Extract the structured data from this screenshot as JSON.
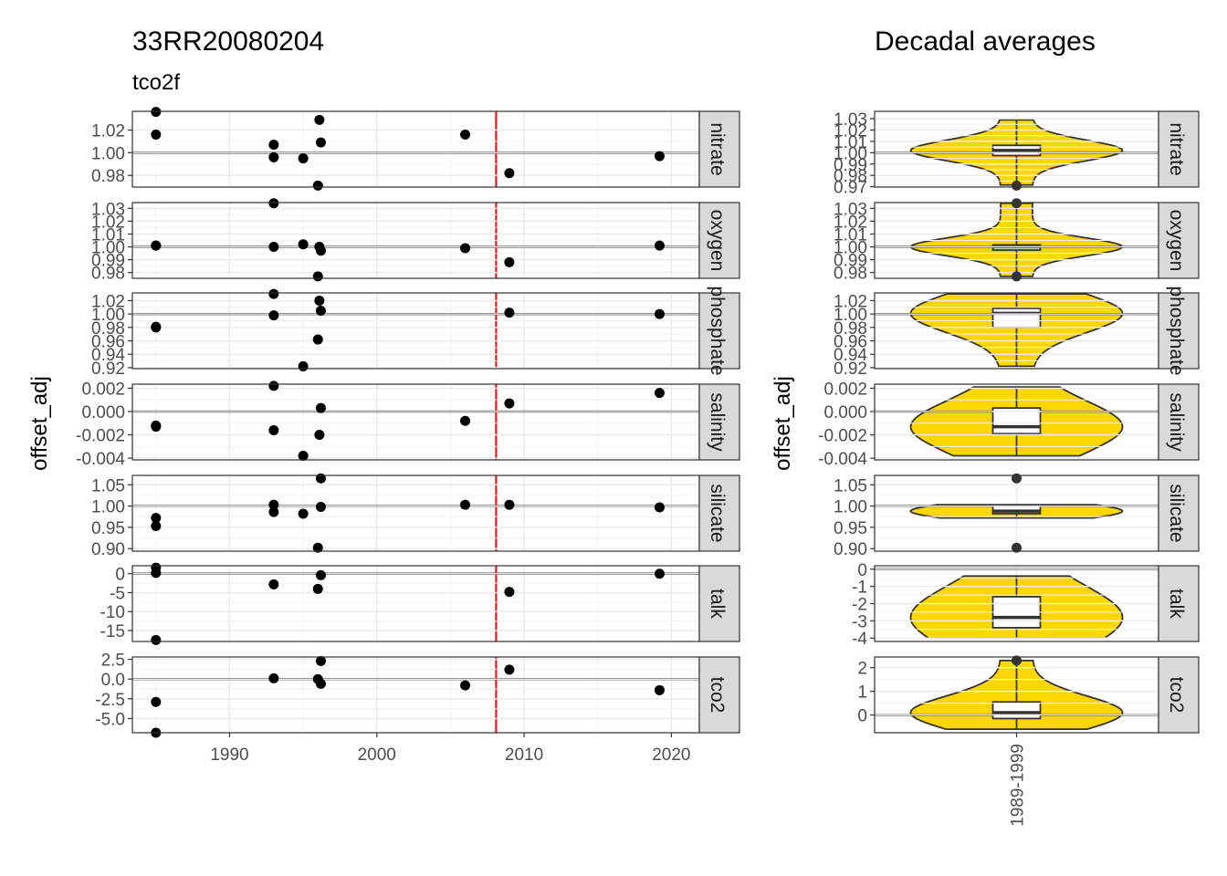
{
  "left": {
    "title": "33RR20080204",
    "subtitle": "tco2f",
    "ylabel": "offset_adj",
    "x_ticks": [
      "1990",
      "2000",
      "2010",
      "2020"
    ]
  },
  "right": {
    "title": "Decadal averages",
    "ylabel": "offset_adj",
    "category": "1989-1999"
  },
  "colors": {
    "violin_fill": "#FFD700",
    "reference_line": "#000000",
    "cruise_year_line": "#E41A1C",
    "points": "#000000",
    "strip_bg": "#D9D9D9"
  },
  "chart_data": [
    {
      "type": "scatter",
      "title": "33RR20080204",
      "subtitle": "tco2f",
      "xlabel": "",
      "ylabel": "offset_adj",
      "xlim": [
        1983.4,
        2021.9
      ],
      "x_ticks": [
        1990,
        2000,
        2010,
        2020
      ],
      "vline_x": 2008.1,
      "grid": true,
      "facets": [
        {
          "name": "nitrate",
          "ylim": [
            0.9697,
            1.0365
          ],
          "hline": 1.0,
          "y_ticks": [
            "1.02",
            "1.00",
            "0.98"
          ],
          "y_tick_values": [
            1.02,
            1.0,
            0.98
          ],
          "points": [
            [
              1985,
              1.036
            ],
            [
              1985,
              1.016
            ],
            [
              1993,
              1.007
            ],
            [
              1993,
              0.996
            ],
            [
              1995,
              0.995
            ],
            [
              1996.1,
              1.029
            ],
            [
              1996.2,
              1.009
            ],
            [
              1996,
              0.971
            ],
            [
              2006,
              1.016
            ],
            [
              2009,
              0.982
            ],
            [
              2019.2,
              0.997
            ]
          ]
        },
        {
          "name": "oxygen",
          "ylim": [
            0.9755,
            1.0345
          ],
          "hline": 1.0,
          "y_ticks": [
            "1.03",
            "1.02",
            "1.01",
            "1.00",
            "0.99",
            "0.98"
          ],
          "y_tick_values": [
            1.03,
            1.02,
            1.01,
            1.0,
            0.99,
            0.98
          ],
          "points": [
            [
              1985,
              1.001
            ],
            [
              1985,
              1.001
            ],
            [
              1993,
              1.034
            ],
            [
              1993,
              1.0
            ],
            [
              1995,
              1.002
            ],
            [
              1996.1,
              1.0
            ],
            [
              1996.2,
              0.997
            ],
            [
              1996,
              0.977
            ],
            [
              2006,
              0.999
            ],
            [
              2009,
              0.988
            ],
            [
              2019.2,
              1.001
            ]
          ]
        },
        {
          "name": "phosphate",
          "ylim": [
            0.9185,
            1.0315
          ],
          "hline": 1.0,
          "y_ticks": [
            "1.02",
            "1.00",
            "0.98",
            "0.96",
            "0.94",
            "0.92"
          ],
          "y_tick_values": [
            1.02,
            1.0,
            0.98,
            0.96,
            0.94,
            0.92
          ],
          "points": [
            [
              1985,
              0.981
            ],
            [
              1985,
              0.98
            ],
            [
              1993,
              1.03
            ],
            [
              1993,
              0.998
            ],
            [
              1995,
              0.922
            ],
            [
              1996.1,
              1.02
            ],
            [
              1996.2,
              1.005
            ],
            [
              1996,
              0.962
            ],
            [
              2009,
              1.002
            ],
            [
              2019.2,
              1.0
            ]
          ]
        },
        {
          "name": "salinity",
          "ylim": [
            -0.00415,
            0.00235
          ],
          "hline": 0.0,
          "y_ticks": [
            "0.002",
            "0.000",
            "-0.002",
            "-0.004"
          ],
          "y_tick_values": [
            0.002,
            0.0,
            -0.002,
            -0.004
          ],
          "points": [
            [
              1985,
              -0.0013
            ],
            [
              1985,
              -0.0012
            ],
            [
              1993,
              0.0022
            ],
            [
              1993,
              -0.0016
            ],
            [
              1995,
              -0.0038
            ],
            [
              1996.1,
              -0.002
            ],
            [
              1996.2,
              0.0003
            ],
            [
              2006,
              -0.0008
            ],
            [
              2009,
              0.0007
            ],
            [
              2019.2,
              0.0016
            ]
          ]
        },
        {
          "name": "silicate",
          "ylim": [
            0.894,
            1.072
          ],
          "hline": 1.0,
          "y_ticks": [
            "1.05",
            "1.00",
            "0.95",
            "0.90"
          ],
          "y_tick_values": [
            1.05,
            1.0,
            0.95,
            0.9
          ],
          "points": [
            [
              1985,
              0.972
            ],
            [
              1985,
              0.953
            ],
            [
              1993,
              1.003
            ],
            [
              1993,
              0.986
            ],
            [
              1995,
              0.982
            ],
            [
              1996.2,
              1.065
            ],
            [
              1996.2,
              0.998
            ],
            [
              1996,
              0.902
            ],
            [
              2006,
              1.003
            ],
            [
              2009,
              1.003
            ],
            [
              2019.2,
              0.997
            ]
          ]
        },
        {
          "name": "talk",
          "ylim": [
            -17.9,
            2.1
          ],
          "hline": 0.0,
          "y_ticks": [
            "0",
            "-5",
            "-10",
            "-15"
          ],
          "y_tick_values": [
            0,
            -5,
            -10,
            -15
          ],
          "points": [
            [
              1985,
              1.6
            ],
            [
              1985,
              0.2
            ],
            [
              1985,
              -17.5
            ],
            [
              1993,
              -2.8
            ],
            [
              1996,
              -4.0
            ],
            [
              1996.2,
              -0.4
            ],
            [
              2009,
              -4.8
            ],
            [
              2019.2,
              0.0
            ]
          ]
        },
        {
          "name": "tco2",
          "ylim": [
            -6.8,
            2.8
          ],
          "hline": 0.0,
          "y_ticks": [
            "2.5",
            "0.0",
            "-2.5",
            "-5.0"
          ],
          "y_tick_values": [
            2.5,
            0.0,
            -2.5,
            -5.0
          ],
          "points": [
            [
              1985,
              -2.9
            ],
            [
              1985,
              -6.8
            ],
            [
              1993,
              0.1
            ],
            [
              1996,
              0.0
            ],
            [
              1996.2,
              2.3
            ],
            [
              1996.2,
              -0.6
            ],
            [
              2006,
              -0.8
            ],
            [
              2009,
              1.2
            ],
            [
              2019.2,
              -1.4
            ]
          ]
        }
      ]
    },
    {
      "type": "violin",
      "title": "Decadal averages",
      "ylabel": "offset_adj",
      "categories": [
        "1989-1999"
      ],
      "hline": "zero/one reference",
      "facets": [
        {
          "name": "nitrate",
          "ylim": [
            0.9697,
            1.0365
          ],
          "hline": 1.0,
          "y_ticks": [
            "1.03",
            "1.02",
            "1.01",
            "1.00",
            "0.99",
            "0.98",
            "0.97"
          ],
          "y_tick_values": [
            1.03,
            1.02,
            1.01,
            1.0,
            0.99,
            0.98,
            0.97
          ],
          "box": {
            "q1": 0.9975,
            "median": 1.002,
            "q3": 1.0065,
            "min": 0.9715,
            "max": 1.029
          },
          "outliers": [
            0.971
          ]
        },
        {
          "name": "oxygen",
          "ylim": [
            0.9755,
            1.0345
          ],
          "hline": 1.0,
          "y_ticks": [
            "1.03",
            "1.02",
            "1.01",
            "1.00",
            "0.99",
            "0.98"
          ],
          "y_tick_values": [
            1.03,
            1.02,
            1.01,
            1.0,
            0.99,
            0.98
          ],
          "box": {
            "q1": 0.9975,
            "median": 1.0,
            "q3": 1.0015,
            "min": 0.977,
            "max": 1.034
          },
          "outliers": [
            1.034,
            0.977
          ]
        },
        {
          "name": "phosphate",
          "ylim": [
            0.9185,
            1.0315
          ],
          "hline": 1.0,
          "y_ticks": [
            "1.02",
            "1.00",
            "0.98",
            "0.96",
            "0.94",
            "0.92"
          ],
          "y_tick_values": [
            1.02,
            1.0,
            0.98,
            0.96,
            0.94,
            0.92
          ],
          "box": {
            "q1": 0.98,
            "median": 1.001,
            "q3": 1.0085,
            "min": 0.922,
            "max": 1.03
          },
          "outliers": []
        },
        {
          "name": "salinity",
          "ylim": [
            -0.00415,
            0.00235
          ],
          "hline": 0.0,
          "y_ticks": [
            "0.002",
            "0.000",
            "-0.002",
            "-0.004"
          ],
          "y_tick_values": [
            0.002,
            0.0,
            -0.002,
            -0.004
          ],
          "box": {
            "q1": -0.0019,
            "median": -0.0013,
            "q3": 0.0003,
            "min": -0.0038,
            "max": 0.0021
          },
          "outliers": []
        },
        {
          "name": "silicate",
          "ylim": [
            0.894,
            1.072
          ],
          "hline": 1.0,
          "y_ticks": [
            "1.05",
            "1.00",
            "0.95",
            "0.90"
          ],
          "y_tick_values": [
            1.05,
            1.0,
            0.95,
            0.9
          ],
          "box": {
            "q1": 0.982,
            "median": 0.988,
            "q3": 1.0,
            "min": 0.972,
            "max": 1.003
          },
          "outliers": [
            1.065,
            0.902
          ]
        },
        {
          "name": "talk",
          "ylim": [
            -4.2,
            0.2
          ],
          "hline": 0.0,
          "y_ticks": [
            "0",
            "-1",
            "-2",
            "-3",
            "-4"
          ],
          "y_tick_values": [
            0,
            -1,
            -2,
            -3,
            -4
          ],
          "box": {
            "q1": -3.4,
            "median": -2.8,
            "q3": -1.6,
            "min": -4.0,
            "max": -0.4
          },
          "outliers": []
        },
        {
          "name": "tco2",
          "ylim": [
            -0.75,
            2.45
          ],
          "hline": 0.0,
          "y_ticks": [
            "2",
            "1",
            "0"
          ],
          "y_tick_values": [
            2,
            1,
            0
          ],
          "box": {
            "q1": -0.15,
            "median": 0.1,
            "q3": 0.55,
            "min": -0.6,
            "max": 2.3
          },
          "outliers": [
            2.3
          ]
        }
      ]
    }
  ]
}
